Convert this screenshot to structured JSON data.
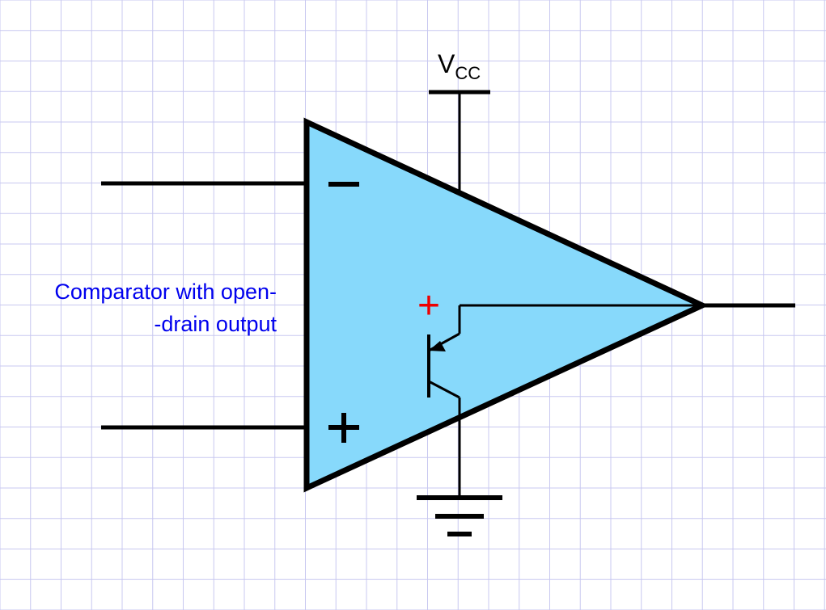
{
  "supply": {
    "label": "V",
    "subscript": "CC"
  },
  "inputs": {
    "inverting_sign": "−",
    "noninverting_sign": "+"
  },
  "transistor": {
    "collector_marker": "+"
  },
  "caption": {
    "line1": "Comparator with open-",
    "line2": "-drain output"
  },
  "colors": {
    "grid": "#c8c8f0",
    "triangle_fill": "#87d9fb",
    "wire": "#000000",
    "caption": "#0000ee",
    "marker": "#ee0000"
  }
}
